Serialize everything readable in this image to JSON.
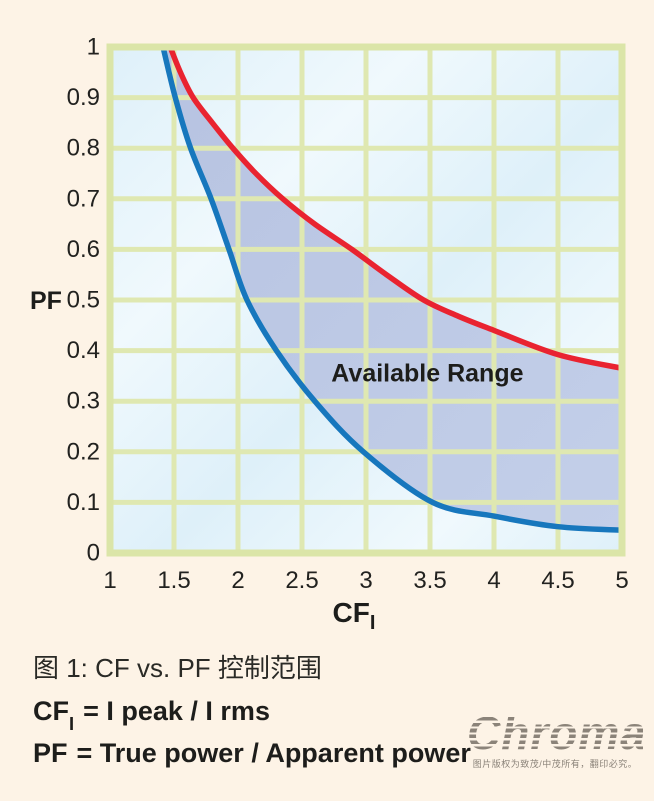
{
  "page": {
    "background": "#fdf3e6"
  },
  "chart_data": {
    "type": "area",
    "title": "",
    "ylabel": "PF",
    "xlabel_main": "CF",
    "xlabel_sub": "I",
    "xlim": [
      1,
      5
    ],
    "ylim": [
      0,
      1
    ],
    "grid": true,
    "x_ticks": [
      "1",
      "1.5",
      "2",
      "2.5",
      "3",
      "3.5",
      "4",
      "4.5",
      "5"
    ],
    "y_ticks": [
      "1",
      "0.9",
      "0.8",
      "0.7",
      "0.6",
      "0.5",
      "0.4",
      "0.3",
      "0.2",
      "0.1",
      "0"
    ],
    "annotation": {
      "text": "Available Range",
      "x": 3.48,
      "y": 0.355
    },
    "series": [
      {
        "name": "upper-limit",
        "color": "#e92330",
        "points": [
          [
            1.47,
            1.0
          ],
          [
            1.55,
            0.95
          ],
          [
            1.65,
            0.9
          ],
          [
            1.8,
            0.85
          ],
          [
            1.96,
            0.8
          ],
          [
            2.14,
            0.75
          ],
          [
            2.35,
            0.7
          ],
          [
            2.6,
            0.65
          ],
          [
            2.89,
            0.6
          ],
          [
            3.16,
            0.55
          ],
          [
            3.45,
            0.5
          ],
          [
            3.72,
            0.468
          ],
          [
            4.0,
            0.44
          ],
          [
            4.5,
            0.392
          ],
          [
            5.0,
            0.365
          ]
        ]
      },
      {
        "name": "lower-limit",
        "color": "#1777bd",
        "points": [
          [
            1.414,
            1.0
          ],
          [
            1.51,
            0.9
          ],
          [
            1.63,
            0.8
          ],
          [
            1.79,
            0.7
          ],
          [
            1.93,
            0.6
          ],
          [
            2.07,
            0.5
          ],
          [
            2.3,
            0.4
          ],
          [
            2.6,
            0.3
          ],
          [
            2.98,
            0.2
          ],
          [
            3.52,
            0.1
          ],
          [
            4.0,
            0.073
          ],
          [
            4.5,
            0.052
          ],
          [
            5.0,
            0.045
          ]
        ]
      }
    ],
    "colors": {
      "plot_bg": "#def0f9",
      "plot_bg_light": "#f0f9fd",
      "band_fill_dark": "#b7c3e1",
      "band_fill_light": "#c3cfe9",
      "grid": "#dfe8b1",
      "frame": "#dbe5a8",
      "text": "#222220"
    }
  },
  "caption": {
    "text": "图 1: CF vs. PF 控制范围"
  },
  "formulas": {
    "cf": {
      "term_main": "CF",
      "term_sub": "I",
      "definition": "= I peak / I rms"
    },
    "pf": {
      "term_main": "PF",
      "definition": "= True power / Apparent power"
    }
  },
  "logo": {
    "brand": "Chroma",
    "tagline": "图片版权为致茂/中茂所有，翻印必究。"
  }
}
